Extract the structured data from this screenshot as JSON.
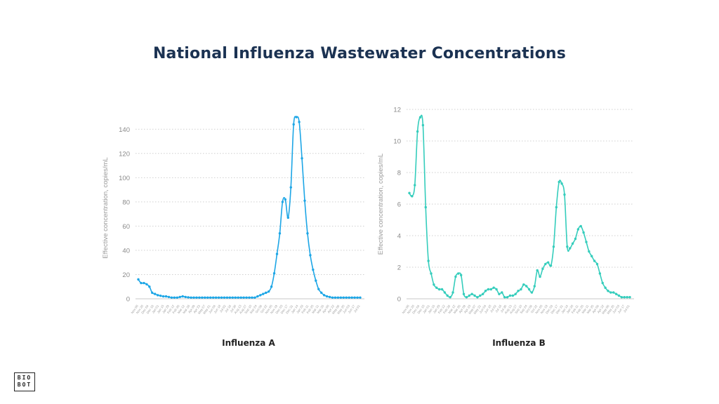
{
  "page": {
    "title": "National Influenza Wastewater Concentrations",
    "logo_line1": "BIO",
    "logo_line2": "BOT"
  },
  "chart_data": [
    {
      "type": "line",
      "caption": "Influenza A",
      "ylabel": "Effective concentration, copies/mL",
      "yticks": [
        0,
        20,
        40,
        60,
        80,
        100,
        120,
        140
      ],
      "ylim": [
        0,
        150
      ],
      "color": "#1da6e6",
      "grid": "horizontal-dotted",
      "xtick_labels": [
        "Nov 06",
        "Nov 20",
        "Dec 04",
        "Dec 18",
        "Jan 01",
        "Jan 15",
        "Jan 29",
        "Feb 12",
        "Feb 26",
        "Mar 12",
        "Mar 26",
        "Apr 09",
        "Apr 23",
        "May 07",
        "May 21",
        "Jun 04",
        "Jun 18",
        "Jul 02",
        "Jul 16",
        "Jul 30",
        "Aug 13",
        "Aug 27",
        "Sep 10",
        "Sep 24",
        "Oct 08",
        "Oct 22",
        "Nov 05",
        "Nov 19",
        "Dec 03",
        "Dec 17",
        "Dec 31",
        "Jan 14",
        "Jan 28",
        "Feb 11",
        "Feb 25",
        "Mar 11",
        "Mar 25",
        "Apr 08",
        "Apr 22",
        "May 06",
        "May 20",
        "Jun 03",
        "Jun 17",
        "Jul 01"
      ],
      "values": [
        16,
        13,
        13,
        12,
        10,
        5,
        4,
        3,
        2.5,
        2,
        2,
        1.5,
        1,
        1,
        1,
        1.5,
        2,
        1.5,
        1.2,
        1,
        1,
        1,
        1,
        1,
        1,
        1,
        1,
        1,
        1,
        1,
        1,
        1,
        1,
        1,
        1,
        1,
        1,
        1,
        1,
        1,
        1,
        1,
        1,
        2,
        3,
        4,
        5,
        6,
        10,
        21,
        37,
        54,
        80,
        82,
        67,
        92,
        144,
        150,
        146,
        116,
        81,
        54,
        36,
        24,
        15,
        8,
        5,
        3,
        2,
        1.5,
        1,
        1,
        1,
        1,
        1,
        1,
        1,
        1,
        1,
        1,
        1
      ]
    },
    {
      "type": "line",
      "caption": "Influenza B",
      "ylabel": "Effective concentration, copies/mL",
      "yticks": [
        0,
        2,
        4,
        6,
        8,
        10,
        12
      ],
      "ylim": [
        0,
        12
      ],
      "color": "#35cdbc",
      "grid": "horizontal-dotted",
      "xtick_labels": [
        "Nov 06",
        "Nov 20",
        "Dec 04",
        "Dec 18",
        "Jan 01",
        "Jan 15",
        "Jan 29",
        "Feb 12",
        "Feb 26",
        "Mar 12",
        "Mar 26",
        "Apr 09",
        "Apr 23",
        "May 07",
        "May 21",
        "Jun 04",
        "Jun 18",
        "Jul 02",
        "Jul 16",
        "Jul 30",
        "Aug 13",
        "Aug 27",
        "Sep 10",
        "Sep 24",
        "Oct 08",
        "Oct 22",
        "Nov 05",
        "Nov 19",
        "Dec 03",
        "Dec 17",
        "Dec 31",
        "Jan 14",
        "Jan 28",
        "Feb 11",
        "Feb 25",
        "Mar 11",
        "Mar 25",
        "Apr 08",
        "Apr 22",
        "May 06",
        "May 20",
        "Jun 03",
        "Jun 17",
        "Jul 01"
      ],
      "values": [
        6.7,
        6.5,
        7.2,
        10.6,
        11.5,
        11.0,
        5.8,
        2.4,
        1.6,
        0.9,
        0.7,
        0.6,
        0.6,
        0.4,
        0.2,
        0.1,
        0.4,
        1.4,
        1.6,
        1.5,
        0.3,
        0.1,
        0.2,
        0.3,
        0.2,
        0.1,
        0.2,
        0.3,
        0.5,
        0.6,
        0.6,
        0.7,
        0.6,
        0.3,
        0.4,
        0.1,
        0.1,
        0.2,
        0.2,
        0.3,
        0.5,
        0.6,
        0.9,
        0.8,
        0.6,
        0.4,
        0.8,
        1.8,
        1.4,
        1.9,
        2.2,
        2.3,
        2.1,
        3.3,
        5.8,
        7.4,
        7.3,
        6.6,
        3.3,
        3.2,
        3.5,
        3.8,
        4.4,
        4.6,
        4.2,
        3.6,
        3.0,
        2.7,
        2.4,
        2.2,
        1.6,
        1.0,
        0.7,
        0.5,
        0.4,
        0.4,
        0.3,
        0.2,
        0.1,
        0.1,
        0.1,
        0.1
      ]
    }
  ]
}
